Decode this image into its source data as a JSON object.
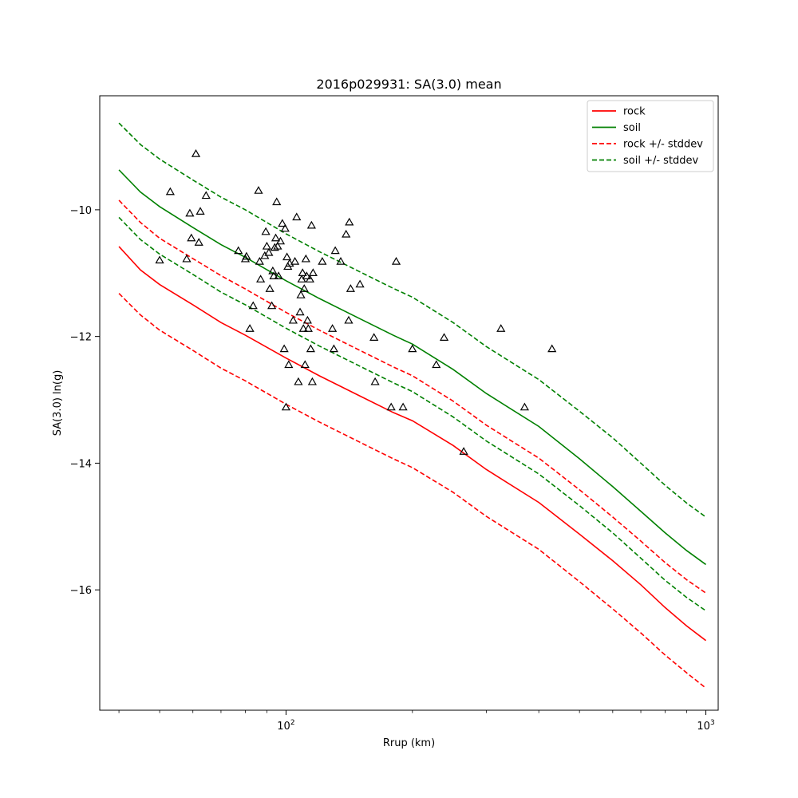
{
  "chart_data": {
    "type": "line",
    "title": "2016p029931: SA(3.0) mean",
    "xlabel": "Rrup (km)",
    "ylabel": "SA(3.0) ln(g)",
    "x_scale": "log",
    "xlim": [
      36,
      1070
    ],
    "ylim": [
      -17.9,
      -8.2
    ],
    "grid": false,
    "legend_position": "top-right",
    "x_ticks": [
      {
        "value": 100,
        "base": "10",
        "exp": "2"
      },
      {
        "value": 1000,
        "base": "10",
        "exp": "3"
      }
    ],
    "y_ticks": [
      {
        "value": -10,
        "label": "−10"
      },
      {
        "value": -12,
        "label": "−12"
      },
      {
        "value": -14,
        "label": "−14"
      },
      {
        "value": -16,
        "label": "−16"
      }
    ],
    "series": [
      {
        "name": "rock",
        "color": "#ff0000",
        "dash": "solid",
        "legend": true,
        "points": [
          [
            40,
            -10.58
          ],
          [
            45,
            -10.95
          ],
          [
            50,
            -11.18
          ],
          [
            60,
            -11.5
          ],
          [
            70,
            -11.78
          ],
          [
            80,
            -11.98
          ],
          [
            100,
            -12.34
          ],
          [
            120,
            -12.62
          ],
          [
            150,
            -12.94
          ],
          [
            180,
            -13.2
          ],
          [
            200,
            -13.33
          ],
          [
            250,
            -13.72
          ],
          [
            300,
            -14.1
          ],
          [
            400,
            -14.62
          ],
          [
            500,
            -15.12
          ],
          [
            600,
            -15.54
          ],
          [
            700,
            -15.92
          ],
          [
            800,
            -16.28
          ],
          [
            900,
            -16.57
          ],
          [
            1000,
            -16.8
          ]
        ]
      },
      {
        "name": "soil",
        "color": "#008000",
        "dash": "solid",
        "legend": true,
        "points": [
          [
            40,
            -9.37
          ],
          [
            45,
            -9.72
          ],
          [
            50,
            -9.95
          ],
          [
            60,
            -10.28
          ],
          [
            70,
            -10.55
          ],
          [
            80,
            -10.75
          ],
          [
            100,
            -11.12
          ],
          [
            120,
            -11.4
          ],
          [
            150,
            -11.72
          ],
          [
            180,
            -11.98
          ],
          [
            200,
            -12.12
          ],
          [
            250,
            -12.52
          ],
          [
            300,
            -12.9
          ],
          [
            400,
            -13.42
          ],
          [
            500,
            -13.93
          ],
          [
            600,
            -14.37
          ],
          [
            700,
            -14.76
          ],
          [
            800,
            -15.1
          ],
          [
            900,
            -15.38
          ],
          [
            1000,
            -15.6
          ]
        ]
      },
      {
        "name": "rock +/- stddev",
        "color": "#ff0000",
        "dash": "dashed",
        "legend": true,
        "points": [
          [
            40,
            -9.85
          ],
          [
            45,
            -10.2
          ],
          [
            50,
            -10.45
          ],
          [
            60,
            -10.77
          ],
          [
            70,
            -11.04
          ],
          [
            80,
            -11.25
          ],
          [
            100,
            -11.62
          ],
          [
            120,
            -11.9
          ],
          [
            150,
            -12.22
          ],
          [
            180,
            -12.48
          ],
          [
            200,
            -12.62
          ],
          [
            250,
            -13.02
          ],
          [
            300,
            -13.4
          ],
          [
            400,
            -13.92
          ],
          [
            500,
            -14.42
          ],
          [
            600,
            -14.85
          ],
          [
            700,
            -15.23
          ],
          [
            800,
            -15.57
          ],
          [
            900,
            -15.84
          ],
          [
            1000,
            -16.05
          ]
        ]
      },
      {
        "name": "",
        "color": "#ff0000",
        "dash": "dashed",
        "legend": false,
        "points": [
          [
            40,
            -11.32
          ],
          [
            45,
            -11.66
          ],
          [
            50,
            -11.9
          ],
          [
            60,
            -12.22
          ],
          [
            70,
            -12.5
          ],
          [
            80,
            -12.7
          ],
          [
            100,
            -13.07
          ],
          [
            120,
            -13.35
          ],
          [
            150,
            -13.67
          ],
          [
            180,
            -13.93
          ],
          [
            200,
            -14.07
          ],
          [
            250,
            -14.46
          ],
          [
            300,
            -14.84
          ],
          [
            400,
            -15.36
          ],
          [
            500,
            -15.87
          ],
          [
            600,
            -16.3
          ],
          [
            700,
            -16.68
          ],
          [
            800,
            -17.03
          ],
          [
            900,
            -17.31
          ],
          [
            1000,
            -17.55
          ]
        ]
      },
      {
        "name": "soil +/- stddev",
        "color": "#008000",
        "dash": "dashed",
        "legend": true,
        "points": [
          [
            40,
            -8.63
          ],
          [
            45,
            -8.97
          ],
          [
            50,
            -9.2
          ],
          [
            60,
            -9.53
          ],
          [
            70,
            -9.8
          ],
          [
            80,
            -10.0
          ],
          [
            100,
            -10.38
          ],
          [
            120,
            -10.66
          ],
          [
            150,
            -10.98
          ],
          [
            180,
            -11.24
          ],
          [
            200,
            -11.38
          ],
          [
            250,
            -11.78
          ],
          [
            300,
            -12.16
          ],
          [
            400,
            -12.68
          ],
          [
            500,
            -13.18
          ],
          [
            600,
            -13.6
          ],
          [
            700,
            -14.0
          ],
          [
            800,
            -14.35
          ],
          [
            900,
            -14.63
          ],
          [
            1000,
            -14.85
          ]
        ]
      },
      {
        "name": "",
        "color": "#008000",
        "dash": "dashed",
        "legend": false,
        "points": [
          [
            40,
            -10.12
          ],
          [
            45,
            -10.47
          ],
          [
            50,
            -10.7
          ],
          [
            60,
            -11.02
          ],
          [
            70,
            -11.3
          ],
          [
            80,
            -11.5
          ],
          [
            100,
            -11.87
          ],
          [
            120,
            -12.15
          ],
          [
            150,
            -12.47
          ],
          [
            180,
            -12.73
          ],
          [
            200,
            -12.87
          ],
          [
            250,
            -13.27
          ],
          [
            300,
            -13.65
          ],
          [
            400,
            -14.17
          ],
          [
            500,
            -14.67
          ],
          [
            600,
            -15.1
          ],
          [
            700,
            -15.5
          ],
          [
            800,
            -15.85
          ],
          [
            900,
            -16.12
          ],
          [
            1000,
            -16.33
          ]
        ]
      }
    ],
    "observations": {
      "marker": "triangle",
      "color": "#000000",
      "points": [
        [
          50,
          -10.8
        ],
        [
          53,
          -9.72
        ],
        [
          58,
          -10.78
        ],
        [
          59,
          -10.06
        ],
        [
          59.5,
          -10.45
        ],
        [
          61,
          -9.12
        ],
        [
          62,
          -10.52
        ],
        [
          62.5,
          -10.03
        ],
        [
          64.5,
          -9.78
        ],
        [
          77,
          -10.65
        ],
        [
          80,
          -10.78
        ],
        [
          80.5,
          -10.74
        ],
        [
          82,
          -11.88
        ],
        [
          83.5,
          -11.52
        ],
        [
          86,
          -9.7
        ],
        [
          86.5,
          -10.82
        ],
        [
          87,
          -11.1
        ],
        [
          89,
          -10.73
        ],
        [
          89.5,
          -10.35
        ],
        [
          90,
          -10.58
        ],
        [
          91,
          -10.68
        ],
        [
          91.5,
          -11.25
        ],
        [
          92.5,
          -11.52
        ],
        [
          93,
          -10.97
        ],
        [
          93.5,
          -11.05
        ],
        [
          94,
          -10.6
        ],
        [
          94.5,
          -10.45
        ],
        [
          95,
          -9.88
        ],
        [
          95.5,
          -10.58
        ],
        [
          96,
          -11.05
        ],
        [
          97,
          -10.5
        ],
        [
          98,
          -10.22
        ],
        [
          99,
          -12.2
        ],
        [
          99.5,
          -10.3
        ],
        [
          100,
          -13.12
        ],
        [
          100.5,
          -10.75
        ],
        [
          101,
          -10.9
        ],
        [
          101.5,
          -12.45
        ],
        [
          102,
          -10.85
        ],
        [
          104,
          -11.75
        ],
        [
          105,
          -10.82
        ],
        [
          106,
          -10.12
        ],
        [
          107,
          -12.72
        ],
        [
          108,
          -11.62
        ],
        [
          108.5,
          -11.35
        ],
        [
          109,
          -11.1
        ],
        [
          109.5,
          -11.0
        ],
        [
          110,
          -11.88
        ],
        [
          110.5,
          -11.25
        ],
        [
          111,
          -12.45
        ],
        [
          111.5,
          -10.78
        ],
        [
          112,
          -11.05
        ],
        [
          112.5,
          -11.75
        ],
        [
          113,
          -11.88
        ],
        [
          114,
          -11.1
        ],
        [
          114.5,
          -12.2
        ],
        [
          115,
          -10.25
        ],
        [
          115.5,
          -12.72
        ],
        [
          116,
          -11.0
        ],
        [
          122,
          -10.82
        ],
        [
          129,
          -11.88
        ],
        [
          130,
          -12.2
        ],
        [
          131,
          -10.65
        ],
        [
          135,
          -10.82
        ],
        [
          139,
          -10.39
        ],
        [
          141,
          -11.75
        ],
        [
          141.5,
          -10.2
        ],
        [
          142.5,
          -11.25
        ],
        [
          150,
          -11.18
        ],
        [
          162,
          -12.02
        ],
        [
          163,
          -12.72
        ],
        [
          178,
          -13.12
        ],
        [
          183,
          -10.82
        ],
        [
          190,
          -13.12
        ],
        [
          200,
          -12.2
        ],
        [
          228,
          -12.45
        ],
        [
          238,
          -12.02
        ],
        [
          265,
          -13.82
        ],
        [
          325,
          -11.88
        ],
        [
          370,
          -13.12
        ],
        [
          430,
          -12.2
        ]
      ]
    }
  }
}
